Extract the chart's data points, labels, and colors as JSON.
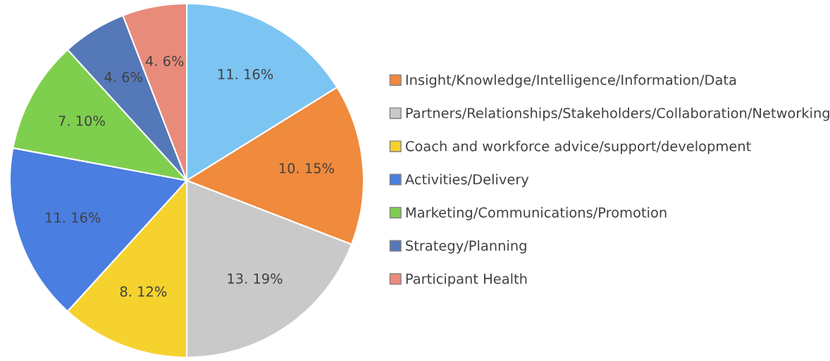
{
  "chart_data": {
    "type": "pie",
    "categories": [
      null,
      "Insight/Knowledge/Intelligence/Information/Data",
      "Partners/Relationships/Stakeholders/Collaboration/Networking",
      "Coach and workforce advice/support/development",
      "Activities/Delivery",
      "Marketing/Communications/Promotion",
      "Strategy/Planning",
      "Participant Health"
    ],
    "values": [
      11,
      10,
      13,
      8,
      11,
      7,
      4,
      4
    ],
    "colors": [
      "#7cc4f2",
      "#f08a3c",
      "#c9c9c9",
      "#f5d22e",
      "#4a7ee0",
      "#7fcf4e",
      "#5578b8",
      "#e98b7a"
    ],
    "value_labels": [
      "11. 16%",
      "10. 15%",
      "13. 19%",
      "8. 12%",
      "11. 16%",
      "7. 10%",
      "4. 6%",
      "4. 6%"
    ],
    "legend": "right"
  }
}
